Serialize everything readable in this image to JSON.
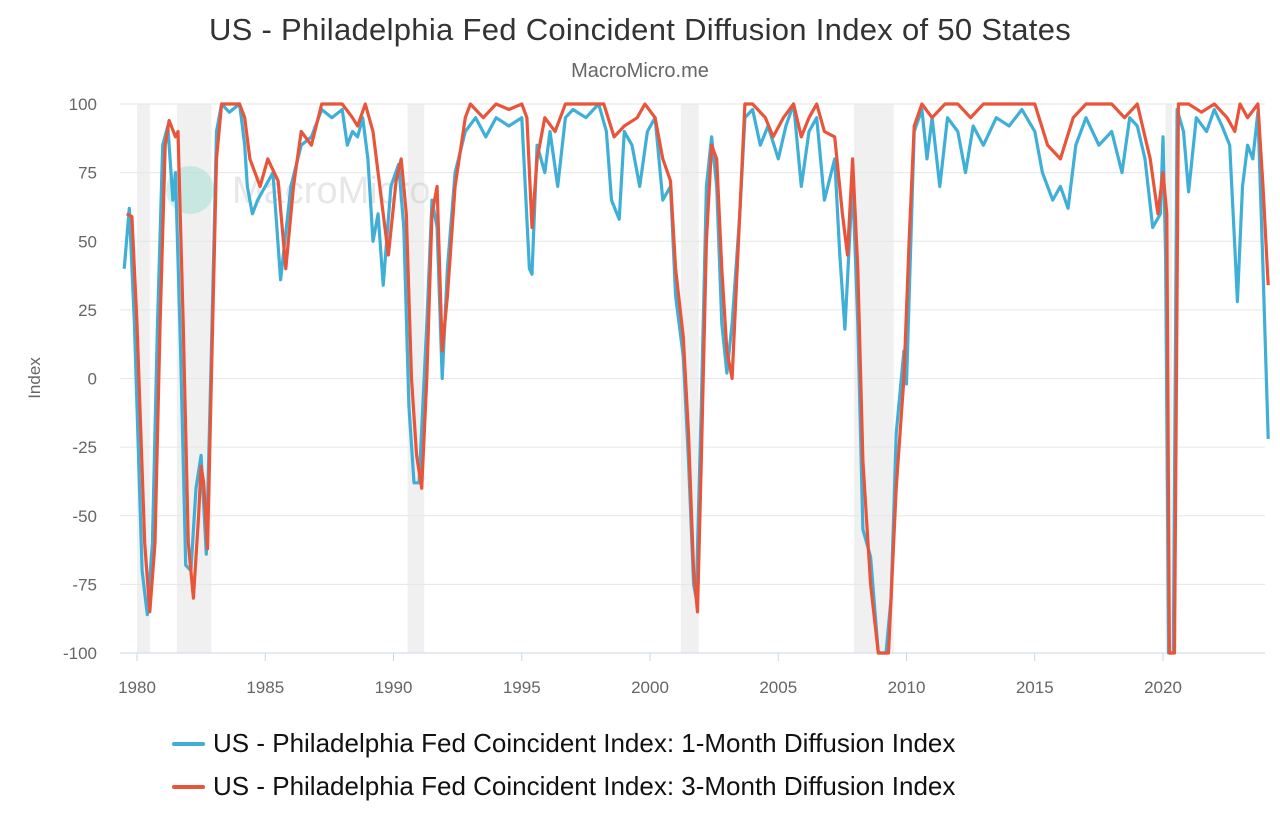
{
  "chart_data": {
    "type": "line",
    "title": "US - Philadelphia Fed Coincident Diffusion Index of 50 States",
    "subtitle": "MacroMicro.me",
    "watermark": "MacroMicro",
    "xlabel": "",
    "ylabel": "Index",
    "xlim": [
      1979.4,
      2024.3
    ],
    "ylim": [
      -100,
      100
    ],
    "yticks": [
      100,
      75,
      50,
      25,
      0,
      -25,
      -50,
      -75,
      -100
    ],
    "xticks": [
      1980,
      1985,
      1990,
      1995,
      2000,
      2005,
      2010,
      2015,
      2020
    ],
    "grid": true,
    "legend_position": "bottom",
    "recessions": [
      [
        1980.0,
        1980.5
      ],
      [
        1981.55,
        1982.9
      ],
      [
        1990.55,
        1991.2
      ],
      [
        2001.2,
        2001.9
      ],
      [
        2007.95,
        2009.5
      ],
      [
        2020.1,
        2020.35
      ]
    ],
    "series": [
      {
        "name": "US - Philadelphia Fed Coincident Index: 1-Month Diffusion Index",
        "color": "#3fafd8",
        "points": [
          [
            1979.5,
            40
          ],
          [
            1979.7,
            62
          ],
          [
            1979.9,
            20
          ],
          [
            1980.2,
            -70
          ],
          [
            1980.4,
            -86
          ],
          [
            1980.6,
            -60
          ],
          [
            1980.8,
            20
          ],
          [
            1981.0,
            85
          ],
          [
            1981.2,
            92
          ],
          [
            1981.4,
            65
          ],
          [
            1981.5,
            75
          ],
          [
            1981.7,
            10
          ],
          [
            1981.9,
            -68
          ],
          [
            1982.1,
            -70
          ],
          [
            1982.3,
            -40
          ],
          [
            1982.5,
            -28
          ],
          [
            1982.7,
            -64
          ],
          [
            1982.9,
            10
          ],
          [
            1983.1,
            90
          ],
          [
            1983.3,
            100
          ],
          [
            1983.6,
            97
          ],
          [
            1984.0,
            100
          ],
          [
            1984.2,
            85
          ],
          [
            1984.3,
            70
          ],
          [
            1984.5,
            60
          ],
          [
            1984.7,
            65
          ],
          [
            1985.0,
            70
          ],
          [
            1985.3,
            75
          ],
          [
            1985.6,
            36
          ],
          [
            1986.0,
            70
          ],
          [
            1986.4,
            85
          ],
          [
            1986.8,
            88
          ],
          [
            1987.2,
            98
          ],
          [
            1987.6,
            95
          ],
          [
            1988.0,
            98
          ],
          [
            1988.2,
            85
          ],
          [
            1988.4,
            90
          ],
          [
            1988.6,
            88
          ],
          [
            1988.8,
            95
          ],
          [
            1989.0,
            80
          ],
          [
            1989.2,
            50
          ],
          [
            1989.4,
            60
          ],
          [
            1989.6,
            34
          ],
          [
            1989.9,
            70
          ],
          [
            1990.2,
            78
          ],
          [
            1990.4,
            55
          ],
          [
            1990.6,
            -10
          ],
          [
            1990.8,
            -38
          ],
          [
            1991.0,
            -38
          ],
          [
            1991.3,
            20
          ],
          [
            1991.5,
            65
          ],
          [
            1991.7,
            55
          ],
          [
            1991.9,
            0
          ],
          [
            1992.1,
            40
          ],
          [
            1992.4,
            75
          ],
          [
            1992.8,
            90
          ],
          [
            1993.2,
            95
          ],
          [
            1993.6,
            88
          ],
          [
            1994.0,
            95
          ],
          [
            1994.5,
            92
          ],
          [
            1995.0,
            95
          ],
          [
            1995.3,
            40
          ],
          [
            1995.4,
            38
          ],
          [
            1995.6,
            85
          ],
          [
            1995.9,
            75
          ],
          [
            1996.1,
            90
          ],
          [
            1996.4,
            70
          ],
          [
            1996.7,
            95
          ],
          [
            1997.0,
            98
          ],
          [
            1997.5,
            95
          ],
          [
            1998.0,
            100
          ],
          [
            1998.3,
            90
          ],
          [
            1998.5,
            65
          ],
          [
            1998.8,
            58
          ],
          [
            1999.0,
            90
          ],
          [
            1999.3,
            85
          ],
          [
            1999.6,
            70
          ],
          [
            1999.9,
            90
          ],
          [
            2000.2,
            95
          ],
          [
            2000.5,
            65
          ],
          [
            2000.8,
            70
          ],
          [
            2001.0,
            30
          ],
          [
            2001.3,
            8
          ],
          [
            2001.5,
            -30
          ],
          [
            2001.7,
            -75
          ],
          [
            2001.8,
            -80
          ],
          [
            2002.0,
            -10
          ],
          [
            2002.2,
            70
          ],
          [
            2002.4,
            88
          ],
          [
            2002.6,
            70
          ],
          [
            2002.8,
            20
          ],
          [
            2003.0,
            2
          ],
          [
            2003.2,
            20
          ],
          [
            2003.5,
            60
          ],
          [
            2003.7,
            95
          ],
          [
            2004.0,
            98
          ],
          [
            2004.3,
            85
          ],
          [
            2004.6,
            92
          ],
          [
            2005.0,
            80
          ],
          [
            2005.3,
            92
          ],
          [
            2005.6,
            100
          ],
          [
            2005.9,
            70
          ],
          [
            2006.2,
            90
          ],
          [
            2006.5,
            95
          ],
          [
            2006.8,
            65
          ],
          [
            2007.2,
            80
          ],
          [
            2007.4,
            45
          ],
          [
            2007.6,
            18
          ],
          [
            2007.9,
            72
          ],
          [
            2008.1,
            20
          ],
          [
            2008.3,
            -55
          ],
          [
            2008.6,
            -65
          ],
          [
            2008.9,
            -100
          ],
          [
            2009.2,
            -100
          ],
          [
            2009.4,
            -80
          ],
          [
            2009.6,
            -20
          ],
          [
            2009.9,
            10
          ],
          [
            2010.0,
            -2
          ],
          [
            2010.3,
            90
          ],
          [
            2010.6,
            98
          ],
          [
            2010.8,
            80
          ],
          [
            2011.0,
            95
          ],
          [
            2011.3,
            70
          ],
          [
            2011.6,
            95
          ],
          [
            2012.0,
            90
          ],
          [
            2012.3,
            75
          ],
          [
            2012.6,
            92
          ],
          [
            2013.0,
            85
          ],
          [
            2013.5,
            95
          ],
          [
            2014.0,
            92
          ],
          [
            2014.5,
            98
          ],
          [
            2015.0,
            90
          ],
          [
            2015.3,
            75
          ],
          [
            2015.7,
            65
          ],
          [
            2016.0,
            70
          ],
          [
            2016.3,
            62
          ],
          [
            2016.6,
            85
          ],
          [
            2017.0,
            95
          ],
          [
            2017.5,
            85
          ],
          [
            2018.0,
            90
          ],
          [
            2018.4,
            75
          ],
          [
            2018.7,
            95
          ],
          [
            2019.0,
            92
          ],
          [
            2019.3,
            80
          ],
          [
            2019.6,
            55
          ],
          [
            2019.9,
            60
          ],
          [
            2020.0,
            88
          ],
          [
            2020.1,
            45
          ],
          [
            2020.22,
            -100
          ],
          [
            2020.4,
            -100
          ],
          [
            2020.55,
            98
          ],
          [
            2020.8,
            90
          ],
          [
            2021.0,
            68
          ],
          [
            2021.3,
            95
          ],
          [
            2021.7,
            90
          ],
          [
            2022.0,
            98
          ],
          [
            2022.3,
            92
          ],
          [
            2022.6,
            85
          ],
          [
            2022.8,
            48
          ],
          [
            2022.9,
            28
          ],
          [
            2023.1,
            70
          ],
          [
            2023.3,
            85
          ],
          [
            2023.5,
            80
          ],
          [
            2023.7,
            97
          ],
          [
            2023.9,
            40
          ],
          [
            2024.1,
            -22
          ]
        ]
      },
      {
        "name": "US - Philadelphia Fed Coincident Index: 3-Month Diffusion Index",
        "color": "#e8553a",
        "points": [
          [
            1979.6,
            60
          ],
          [
            1979.8,
            59
          ],
          [
            1980.0,
            20
          ],
          [
            1980.3,
            -60
          ],
          [
            1980.5,
            -85
          ],
          [
            1980.7,
            -60
          ],
          [
            1980.9,
            20
          ],
          [
            1981.1,
            85
          ],
          [
            1981.25,
            94
          ],
          [
            1981.5,
            88
          ],
          [
            1981.6,
            90
          ],
          [
            1981.8,
            20
          ],
          [
            1982.0,
            -60
          ],
          [
            1982.2,
            -80
          ],
          [
            1982.4,
            -50
          ],
          [
            1982.5,
            -32
          ],
          [
            1982.6,
            -38
          ],
          [
            1982.75,
            -62
          ],
          [
            1982.9,
            0
          ],
          [
            1983.1,
            80
          ],
          [
            1983.3,
            100
          ],
          [
            1983.6,
            100
          ],
          [
            1984.0,
            100
          ],
          [
            1984.2,
            95
          ],
          [
            1984.4,
            80
          ],
          [
            1984.8,
            70
          ],
          [
            1985.1,
            80
          ],
          [
            1985.5,
            72
          ],
          [
            1985.8,
            40
          ],
          [
            1986.1,
            70
          ],
          [
            1986.4,
            90
          ],
          [
            1986.8,
            85
          ],
          [
            1987.2,
            100
          ],
          [
            1987.6,
            100
          ],
          [
            1988.0,
            100
          ],
          [
            1988.4,
            95
          ],
          [
            1988.6,
            92
          ],
          [
            1988.9,
            100
          ],
          [
            1989.2,
            90
          ],
          [
            1989.6,
            60
          ],
          [
            1989.8,
            45
          ],
          [
            1990.1,
            72
          ],
          [
            1990.3,
            80
          ],
          [
            1990.5,
            60
          ],
          [
            1990.7,
            0
          ],
          [
            1990.9,
            -28
          ],
          [
            1991.1,
            -40
          ],
          [
            1991.3,
            0
          ],
          [
            1991.5,
            60
          ],
          [
            1991.7,
            70
          ],
          [
            1991.9,
            10
          ],
          [
            1992.1,
            30
          ],
          [
            1992.4,
            70
          ],
          [
            1992.8,
            95
          ],
          [
            1993.0,
            100
          ],
          [
            1993.5,
            95
          ],
          [
            1994.0,
            100
          ],
          [
            1994.5,
            98
          ],
          [
            1995.0,
            100
          ],
          [
            1995.2,
            95
          ],
          [
            1995.4,
            55
          ],
          [
            1995.6,
            80
          ],
          [
            1995.9,
            95
          ],
          [
            1996.3,
            90
          ],
          [
            1996.7,
            100
          ],
          [
            1997.5,
            100
          ],
          [
            1998.2,
            100
          ],
          [
            1998.6,
            88
          ],
          [
            1999.0,
            92
          ],
          [
            1999.5,
            95
          ],
          [
            1999.8,
            100
          ],
          [
            2000.2,
            95
          ],
          [
            2000.5,
            80
          ],
          [
            2000.8,
            72
          ],
          [
            2001.0,
            40
          ],
          [
            2001.3,
            15
          ],
          [
            2001.5,
            -20
          ],
          [
            2001.7,
            -70
          ],
          [
            2001.85,
            -85
          ],
          [
            2002.0,
            -30
          ],
          [
            2002.2,
            50
          ],
          [
            2002.4,
            85
          ],
          [
            2002.6,
            80
          ],
          [
            2002.8,
            40
          ],
          [
            2003.0,
            10
          ],
          [
            2003.2,
            0
          ],
          [
            2003.4,
            40
          ],
          [
            2003.7,
            100
          ],
          [
            2004.0,
            100
          ],
          [
            2004.5,
            95
          ],
          [
            2004.8,
            88
          ],
          [
            2005.2,
            95
          ],
          [
            2005.6,
            100
          ],
          [
            2005.9,
            88
          ],
          [
            2006.2,
            95
          ],
          [
            2006.5,
            100
          ],
          [
            2006.8,
            90
          ],
          [
            2007.2,
            88
          ],
          [
            2007.5,
            60
          ],
          [
            2007.7,
            45
          ],
          [
            2007.9,
            80
          ],
          [
            2008.1,
            40
          ],
          [
            2008.3,
            -30
          ],
          [
            2008.6,
            -75
          ],
          [
            2008.9,
            -100
          ],
          [
            2009.3,
            -100
          ],
          [
            2009.6,
            -40
          ],
          [
            2009.9,
            0
          ],
          [
            2010.1,
            50
          ],
          [
            2010.3,
            92
          ],
          [
            2010.6,
            100
          ],
          [
            2011.0,
            95
          ],
          [
            2011.5,
            100
          ],
          [
            2012.0,
            100
          ],
          [
            2012.5,
            95
          ],
          [
            2013.0,
            100
          ],
          [
            2014.0,
            100
          ],
          [
            2015.0,
            100
          ],
          [
            2015.5,
            85
          ],
          [
            2016.0,
            80
          ],
          [
            2016.5,
            95
          ],
          [
            2017.0,
            100
          ],
          [
            2018.0,
            100
          ],
          [
            2018.5,
            95
          ],
          [
            2019.0,
            100
          ],
          [
            2019.5,
            80
          ],
          [
            2019.8,
            60
          ],
          [
            2020.0,
            75
          ],
          [
            2020.15,
            60
          ],
          [
            2020.25,
            -100
          ],
          [
            2020.45,
            -100
          ],
          [
            2020.6,
            100
          ],
          [
            2021.0,
            100
          ],
          [
            2021.5,
            97
          ],
          [
            2022.0,
            100
          ],
          [
            2022.5,
            95
          ],
          [
            2022.8,
            90
          ],
          [
            2023.0,
            100
          ],
          [
            2023.3,
            95
          ],
          [
            2023.7,
            100
          ],
          [
            2023.9,
            70
          ],
          [
            2024.1,
            34
          ]
        ]
      }
    ]
  }
}
